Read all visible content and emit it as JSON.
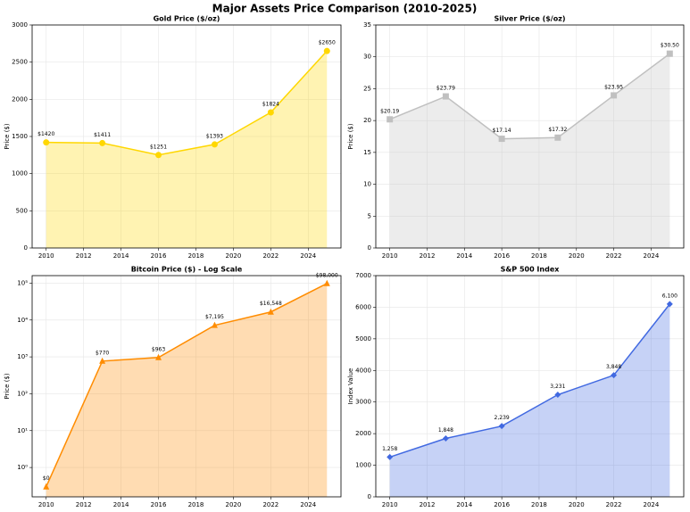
{
  "title": "Major Assets Price Comparison (2010-2025)",
  "chart_data": [
    {
      "type": "line",
      "title": "Gold Price ($/oz)",
      "ylabel": "Price ($)",
      "x": [
        2010,
        2013,
        2016,
        2019,
        2022,
        2025
      ],
      "values": [
        1420,
        1411,
        1251,
        1393,
        1824,
        2650
      ],
      "value_labels": [
        "$1420",
        "$1411",
        "$1251",
        "$1393",
        "$1824",
        "$2650"
      ],
      "color": "#ffd700",
      "marker": "circle",
      "fill": true,
      "grid": true,
      "log_scale": false,
      "xlim": [
        2009.25,
        2025.75
      ],
      "xticks": [
        2010,
        2012,
        2014,
        2016,
        2018,
        2020,
        2022,
        2024
      ],
      "ylim": [
        0,
        3000
      ],
      "yticks": [
        0,
        500,
        1000,
        1500,
        2000,
        2500,
        3000
      ]
    },
    {
      "type": "line",
      "title": "Silver Price ($/oz)",
      "ylabel": "Price ($)",
      "x": [
        2010,
        2013,
        2016,
        2019,
        2022,
        2025
      ],
      "values": [
        20.19,
        23.79,
        17.14,
        17.32,
        23.95,
        30.5
      ],
      "value_labels": [
        "$20.19",
        "$23.79",
        "$17.14",
        "$17.32",
        "$23.95",
        "$30.50"
      ],
      "color": "#c0c0c0",
      "marker": "square",
      "fill": true,
      "grid": true,
      "log_scale": false,
      "xlim": [
        2009.25,
        2025.75
      ],
      "xticks": [
        2010,
        2012,
        2014,
        2016,
        2018,
        2020,
        2022,
        2024
      ],
      "ylim": [
        0,
        35
      ],
      "yticks": [
        0,
        5,
        10,
        15,
        20,
        25,
        30,
        35
      ]
    },
    {
      "type": "line",
      "title": "Bitcoin Price ($) - Log Scale",
      "ylabel": "Price ($)",
      "x": [
        2010,
        2013,
        2016,
        2019,
        2022,
        2025
      ],
      "values": [
        0.3,
        770,
        963,
        7195,
        16548,
        98000
      ],
      "value_labels": [
        "$0",
        "$770",
        "$963",
        "$7,195",
        "$16,548",
        "$98,000"
      ],
      "color": "#ff8c00",
      "marker": "triangle",
      "fill": true,
      "grid": true,
      "log_scale": true,
      "xlim": [
        2009.25,
        2025.75
      ],
      "xticks": [
        2010,
        2012,
        2014,
        2016,
        2018,
        2020,
        2022,
        2024
      ],
      "ylim": [
        0.16,
        160000
      ],
      "yticks": [
        {
          "value": 1,
          "label": "10⁰"
        },
        {
          "value": 10,
          "label": "10¹"
        },
        {
          "value": 100,
          "label": "10²"
        },
        {
          "value": 1000,
          "label": "10³"
        },
        {
          "value": 10000,
          "label": "10⁴"
        },
        {
          "value": 100000,
          "label": "10⁵"
        }
      ]
    },
    {
      "type": "line",
      "title": "S&P 500 Index",
      "ylabel": "Index Value",
      "x": [
        2010,
        2013,
        2016,
        2019,
        2022,
        2025
      ],
      "values": [
        1258,
        1848,
        2239,
        3231,
        3848,
        6100
      ],
      "value_labels": [
        "1,258",
        "1,848",
        "2,239",
        "3,231",
        "3,848",
        "6,100"
      ],
      "color": "#4169e1",
      "marker": "diamond",
      "fill": true,
      "grid": true,
      "log_scale": false,
      "xlim": [
        2009.25,
        2025.75
      ],
      "xticks": [
        2010,
        2012,
        2014,
        2016,
        2018,
        2020,
        2022,
        2024
      ],
      "ylim": [
        0,
        7000
      ],
      "yticks": [
        0,
        1000,
        2000,
        3000,
        4000,
        5000,
        6000,
        7000
      ]
    }
  ]
}
